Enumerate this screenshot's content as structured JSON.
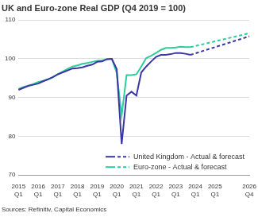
{
  "chart_data": {
    "type": "line",
    "title": "UK and Euro-zone Real GDP (Q4 2019 = 100)",
    "source": "Sources: Refinitiv, Capital Economics",
    "categories": [
      "2015 Q1",
      null,
      null,
      null,
      "2016 Q1",
      null,
      null,
      null,
      "2017 Q1",
      null,
      null,
      null,
      "2018 Q1",
      null,
      null,
      null,
      "2019 Q1",
      null,
      null,
      null,
      "2020 Q1",
      null,
      null,
      null,
      "2021 Q1",
      null,
      null,
      null,
      "2022 Q1",
      null,
      null,
      null,
      "2023 Q1",
      null,
      null,
      null,
      "2024 Q1",
      null,
      null,
      null,
      "2025 Q1",
      null,
      null,
      null,
      null,
      null,
      null,
      "2026 Q4"
    ],
    "series": [
      {
        "name": "United Kingdom - Actual & forecast",
        "color": "#3a36a6",
        "line_style": "solid",
        "values": [
          92,
          92.5,
          93,
          93.3,
          93.6,
          94.2,
          94.7,
          95.3,
          96,
          96.5,
          97,
          97.5,
          97.6,
          97.8,
          98.2,
          98.5,
          99.2,
          99.3,
          99.9,
          100,
          97.3,
          78,
          90.5,
          91.5,
          90.5,
          96.5,
          98,
          99.3,
          100.5,
          101,
          101,
          101.2,
          101.5,
          101.5,
          101.3,
          101,
          null,
          null,
          null,
          null,
          null,
          null,
          null,
          null,
          null,
          null,
          null,
          null
        ],
        "forecast": [
          null,
          null,
          null,
          null,
          null,
          null,
          null,
          null,
          null,
          null,
          null,
          null,
          null,
          null,
          null,
          null,
          null,
          null,
          null,
          null,
          null,
          null,
          null,
          null,
          null,
          null,
          null,
          null,
          null,
          null,
          null,
          null,
          null,
          null,
          null,
          101,
          101.4,
          101.8,
          102.2,
          102.6,
          103,
          103.4,
          103.8,
          104.2,
          104.6,
          105,
          105.4,
          105.8
        ]
      },
      {
        "name": "Euro-zone - Actual & forecast",
        "color": "#2ecc9a",
        "line_style": "solid",
        "values": [
          92.2,
          92.7,
          93.1,
          93.5,
          94,
          94.3,
          94.7,
          95.2,
          96,
          96.7,
          97.4,
          98,
          98.3,
          98.7,
          98.9,
          99.2,
          99.5,
          99.6,
          99.9,
          100,
          96.3,
          85.4,
          95.8,
          95.8,
          96,
          98,
          100.2,
          100.8,
          101.5,
          102.3,
          102.8,
          102.8,
          102.9,
          103.1,
          103,
          103,
          null,
          null,
          null,
          null,
          null,
          null,
          null,
          null,
          null,
          null,
          null,
          null
        ],
        "forecast": [
          null,
          null,
          null,
          null,
          null,
          null,
          null,
          null,
          null,
          null,
          null,
          null,
          null,
          null,
          null,
          null,
          null,
          null,
          null,
          null,
          null,
          null,
          null,
          null,
          null,
          null,
          null,
          null,
          null,
          null,
          null,
          null,
          null,
          null,
          null,
          103,
          103.3,
          103.6,
          103.9,
          104.2,
          104.5,
          104.8,
          105.1,
          105.4,
          105.7,
          106,
          106.3,
          106.6
        ]
      }
    ],
    "ylim": [
      70,
      110
    ],
    "yticks": [
      70,
      80,
      90,
      100,
      110
    ],
    "grid": true,
    "legend": "lower right"
  }
}
